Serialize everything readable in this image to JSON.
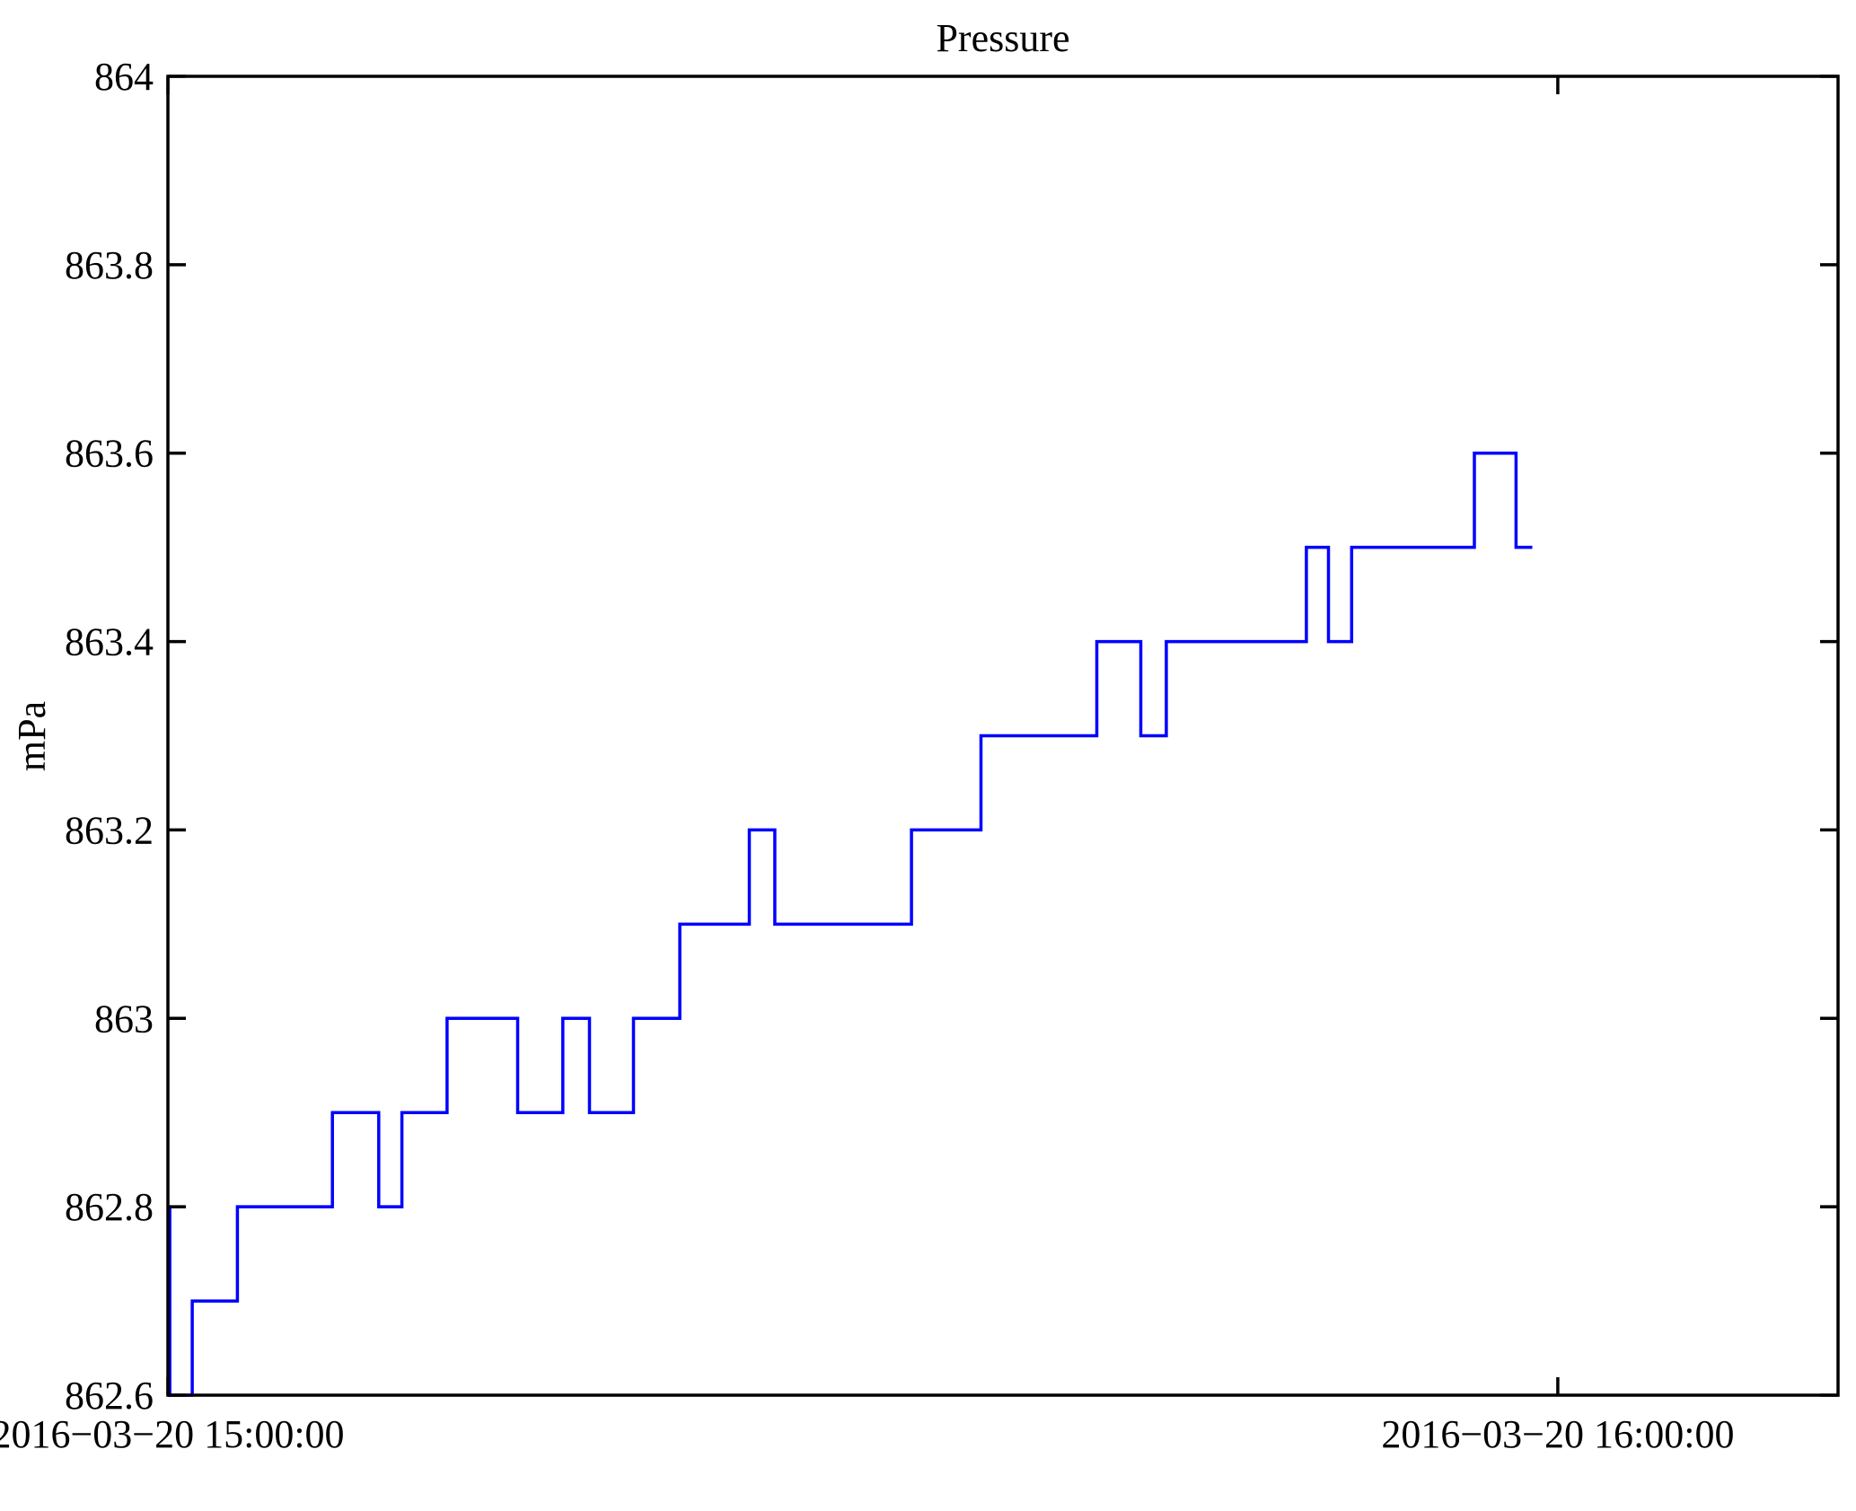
{
  "chart_data": {
    "type": "line",
    "line_style": "step-post",
    "title": "Pressure",
    "ylabel": "mPa",
    "xlabel": "",
    "grid": false,
    "legend": "none",
    "series_color": "#0000ff",
    "axis_color": "#000000",
    "ylim": [
      862.6,
      864
    ],
    "xlim_minutes": [
      0,
      72.1
    ],
    "y_ticks": [
      862.6,
      862.8,
      863,
      863.2,
      863.4,
      863.6,
      863.8,
      864
    ],
    "y_tick_labels": [
      "862.6",
      "862.8",
      "863",
      "863.2",
      "863.4",
      "863.6",
      "863.8",
      "864"
    ],
    "x_ticks_minutes": [
      0,
      60
    ],
    "x_tick_labels": [
      "2016−03−20 15:00:00",
      "2016−03−20 16:00:00"
    ],
    "series": [
      {
        "name": "Pressure",
        "unit": "mPa",
        "end_minute": 58.9,
        "step_points_min_value": [
          [
            0.0,
            862.8
          ],
          [
            0.08,
            862.6
          ],
          [
            1.05,
            862.7
          ],
          [
            3.0,
            862.8
          ],
          [
            7.1,
            862.9
          ],
          [
            9.1,
            862.8
          ],
          [
            10.1,
            862.9
          ],
          [
            12.05,
            863.0
          ],
          [
            15.1,
            862.9
          ],
          [
            17.05,
            863.0
          ],
          [
            18.2,
            862.9
          ],
          [
            20.1,
            863.0
          ],
          [
            22.1,
            863.1
          ],
          [
            25.1,
            863.2
          ],
          [
            26.2,
            863.1
          ],
          [
            32.1,
            863.2
          ],
          [
            35.1,
            863.3
          ],
          [
            40.1,
            863.4
          ],
          [
            42.0,
            863.3
          ],
          [
            43.1,
            863.4
          ],
          [
            49.15,
            863.5
          ],
          [
            50.1,
            863.4
          ],
          [
            51.1,
            863.5
          ],
          [
            56.4,
            863.6
          ],
          [
            58.2,
            863.5
          ]
        ]
      }
    ]
  }
}
